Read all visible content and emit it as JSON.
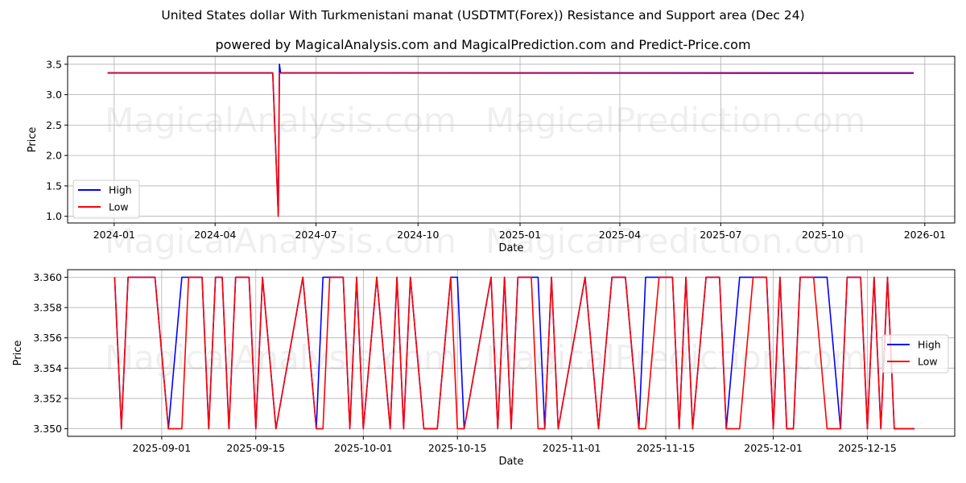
{
  "title": "United States dollar With Turkmenistani manat (USDTMT(Forex)) Resistance and Support area (Dec 24)",
  "subtitle": "powered by MagicalAnalysis.com and MagicalPrediction.com and Predict-Price.com",
  "watermarks": [
    "MagicalAnalysis.com",
    "MagicalPrediction.com"
  ],
  "colors": {
    "high": "#0000ff",
    "low": "#ff0000"
  },
  "chart_data": [
    {
      "type": "line",
      "xlabel": "Date",
      "ylabel": "Price",
      "xlim": [
        "2023-11-20",
        "2026-01-28"
      ],
      "ylim": [
        0.89,
        3.63
      ],
      "grid": true,
      "legend": "lower-left",
      "xticks": [
        "2024-01",
        "2024-04",
        "2024-07",
        "2024-10",
        "2025-01",
        "2025-04",
        "2025-07",
        "2025-10",
        "2026-01"
      ],
      "yticks": [
        "1.0",
        "1.5",
        "2.0",
        "2.5",
        "3.0",
        "3.5"
      ],
      "series": [
        {
          "name": "High",
          "points": [
            [
              "2023-12-26",
              3.36
            ],
            [
              "2024-05-23",
              3.36
            ],
            [
              "2024-05-28",
              1.0
            ],
            [
              "2024-05-29",
              3.5
            ],
            [
              "2024-05-30",
              3.36
            ],
            [
              "2025-12-22",
              3.36
            ]
          ]
        },
        {
          "name": "Low",
          "points": [
            [
              "2023-12-26",
              3.355
            ],
            [
              "2024-05-23",
              3.355
            ],
            [
              "2024-05-28",
              1.0
            ],
            [
              "2024-05-29",
              3.355
            ],
            [
              "2025-12-22",
              3.35
            ]
          ]
        }
      ]
    },
    {
      "type": "line",
      "xlabel": "Date",
      "ylabel": "Price",
      "xlim": [
        "2025-08-18",
        "2025-12-28"
      ],
      "ylim": [
        3.3495,
        3.3605
      ],
      "grid": true,
      "legend": "center-right",
      "xticks": [
        "2025-09-01",
        "2025-09-15",
        "2025-10-01",
        "2025-10-15",
        "2025-11-01",
        "2025-11-15",
        "2025-12-01",
        "2025-12-15"
      ],
      "yticks": [
        "3.350",
        "3.352",
        "3.354",
        "3.356",
        "3.358",
        "3.360"
      ],
      "points": [
        [
          "2025-08-25",
          3.36,
          3.36
        ],
        [
          "2025-08-26",
          3.35,
          3.35
        ],
        [
          "2025-08-27",
          3.36,
          3.36
        ],
        [
          "2025-08-31",
          3.36,
          3.36
        ],
        [
          "2025-09-02",
          3.35,
          3.35
        ],
        [
          "2025-09-04",
          3.36,
          3.35
        ],
        [
          "2025-09-05",
          3.36,
          3.36
        ],
        [
          "2025-09-07",
          3.36,
          3.36
        ],
        [
          "2025-09-08",
          3.35,
          3.35
        ],
        [
          "2025-09-09",
          3.36,
          3.36
        ],
        [
          "2025-09-10",
          3.36,
          3.36
        ],
        [
          "2025-09-11",
          3.35,
          3.35
        ],
        [
          "2025-09-12",
          3.36,
          3.36
        ],
        [
          "2025-09-14",
          3.36,
          3.36
        ],
        [
          "2025-09-15",
          3.35,
          3.35
        ],
        [
          "2025-09-16",
          3.36,
          3.36
        ],
        [
          "2025-09-18",
          3.35,
          3.35
        ],
        [
          "2025-09-22",
          3.36,
          3.36
        ],
        [
          "2025-09-24",
          3.35,
          3.35
        ],
        [
          "2025-09-25",
          3.36,
          3.35
        ],
        [
          "2025-09-26",
          3.36,
          3.36
        ],
        [
          "2025-09-28",
          3.36,
          3.36
        ],
        [
          "2025-09-29",
          3.35,
          3.35
        ],
        [
          "2025-09-30",
          3.36,
          3.36
        ],
        [
          "2025-10-01",
          3.35,
          3.35
        ],
        [
          "2025-10-03",
          3.36,
          3.36
        ],
        [
          "2025-10-05",
          3.35,
          3.35
        ],
        [
          "2025-10-06",
          3.36,
          3.36
        ],
        [
          "2025-10-07",
          3.35,
          3.35
        ],
        [
          "2025-10-08",
          3.36,
          3.36
        ],
        [
          "2025-10-10",
          3.35,
          3.35
        ],
        [
          "2025-10-12",
          3.35,
          3.35
        ],
        [
          "2025-10-14",
          3.36,
          3.36
        ],
        [
          "2025-10-15",
          3.36,
          3.35
        ],
        [
          "2025-10-16",
          3.35,
          3.35
        ],
        [
          "2025-10-20",
          3.36,
          3.36
        ],
        [
          "2025-10-21",
          3.35,
          3.35
        ],
        [
          "2025-10-22",
          3.36,
          3.36
        ],
        [
          "2025-10-23",
          3.35,
          3.35
        ],
        [
          "2025-10-24",
          3.36,
          3.36
        ],
        [
          "2025-10-26",
          3.36,
          3.36
        ],
        [
          "2025-10-27",
          3.36,
          3.35
        ],
        [
          "2025-10-28",
          3.35,
          3.35
        ],
        [
          "2025-10-29",
          3.36,
          3.36
        ],
        [
          "2025-10-30",
          3.35,
          3.35
        ],
        [
          "2025-11-03",
          3.36,
          3.36
        ],
        [
          "2025-11-05",
          3.35,
          3.35
        ],
        [
          "2025-11-07",
          3.36,
          3.36
        ],
        [
          "2025-11-09",
          3.36,
          3.36
        ],
        [
          "2025-11-11",
          3.35,
          3.35
        ],
        [
          "2025-11-12",
          3.36,
          3.35
        ],
        [
          "2025-11-14",
          3.36,
          3.36
        ],
        [
          "2025-11-16",
          3.36,
          3.36
        ],
        [
          "2025-11-17",
          3.35,
          3.35
        ],
        [
          "2025-11-18",
          3.36,
          3.36
        ],
        [
          "2025-11-19",
          3.35,
          3.35
        ],
        [
          "2025-11-21",
          3.36,
          3.36
        ],
        [
          "2025-11-23",
          3.36,
          3.36
        ],
        [
          "2025-11-24",
          3.35,
          3.35
        ],
        [
          "2025-11-26",
          3.36,
          3.35
        ],
        [
          "2025-11-28",
          3.36,
          3.36
        ],
        [
          "2025-11-30",
          3.36,
          3.36
        ],
        [
          "2025-12-01",
          3.35,
          3.35
        ],
        [
          "2025-12-02",
          3.36,
          3.36
        ],
        [
          "2025-12-03",
          3.35,
          3.35
        ],
        [
          "2025-12-04",
          3.35,
          3.35
        ],
        [
          "2025-12-05",
          3.36,
          3.36
        ],
        [
          "2025-12-07",
          3.36,
          3.36
        ],
        [
          "2025-12-09",
          3.36,
          3.35
        ],
        [
          "2025-12-11",
          3.35,
          3.35
        ],
        [
          "2025-12-12",
          3.36,
          3.36
        ],
        [
          "2025-12-14",
          3.36,
          3.36
        ],
        [
          "2025-12-15",
          3.35,
          3.35
        ],
        [
          "2025-12-16",
          3.36,
          3.36
        ],
        [
          "2025-12-17",
          3.35,
          3.35
        ],
        [
          "2025-12-18",
          3.36,
          3.36
        ],
        [
          "2025-12-19",
          3.35,
          3.35
        ],
        [
          "2025-12-22",
          3.35,
          3.35
        ]
      ],
      "series_names": [
        "High",
        "Low"
      ]
    }
  ]
}
